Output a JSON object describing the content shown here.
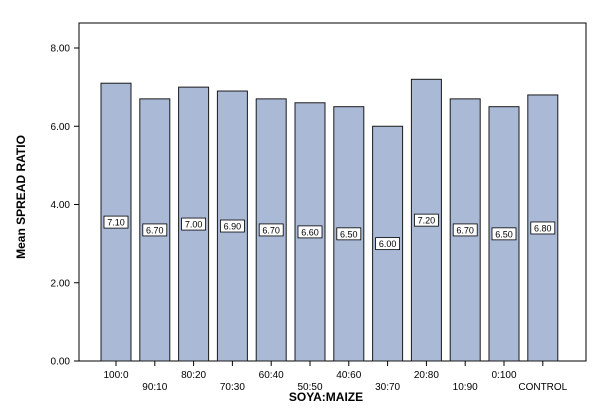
{
  "chart_data": {
    "type": "bar",
    "title": "",
    "xlabel": "SOYA:MAIZE",
    "ylabel": "Mean SPREAD RATIO",
    "ylim": [
      0,
      8
    ],
    "yticks": [
      "0.00",
      "2.00",
      "4.00",
      "6.00",
      "8.00"
    ],
    "categories": [
      "100:0",
      "90:10",
      "80:20",
      "70:30",
      "60:40",
      "50:50",
      "40:60",
      "30:70",
      "20:80",
      "10:90",
      "0:100",
      "CONTROL"
    ],
    "values": [
      7.1,
      6.7,
      7.0,
      6.9,
      6.7,
      6.6,
      6.5,
      6.0,
      7.2,
      6.7,
      6.5,
      6.8
    ],
    "data_labels": [
      "7.10",
      "6.70",
      "7.00",
      "6.90",
      "6.70",
      "6.60",
      "6.50",
      "6.00",
      "7.20",
      "6.70",
      "6.50",
      "6.80"
    ],
    "grid": false,
    "legend": "none",
    "colors": {
      "bar_fill": "#a9b9d6",
      "bar_stroke": "#1a1a1a",
      "axis": "#000000",
      "label_box": "#ffffff"
    }
  }
}
